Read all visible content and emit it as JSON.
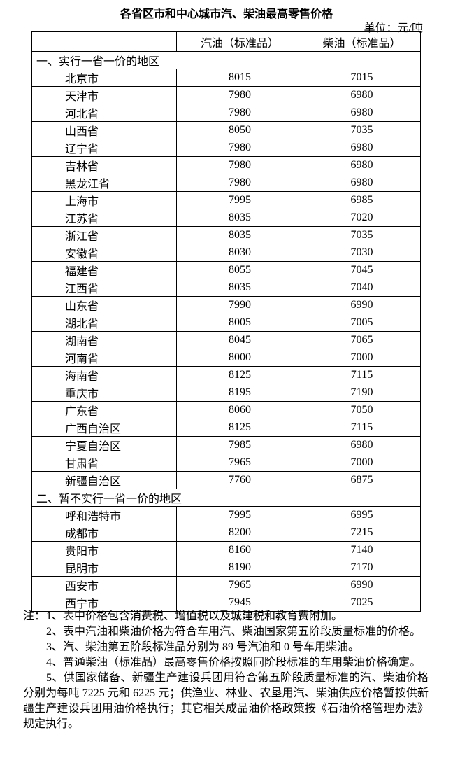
{
  "page": {
    "title": "各省区市和中心城市汽、柴油最高零售价格",
    "unit_label": "单位：元/吨"
  },
  "table": {
    "columns": [
      "",
      "汽油（标准品）",
      "柴油（标准品）"
    ],
    "sections": [
      {
        "header": "一、实行一省一价的地区",
        "rows": [
          {
            "region": "北京市",
            "gasoline": "8015",
            "diesel": "7015"
          },
          {
            "region": "天津市",
            "gasoline": "7980",
            "diesel": "6980"
          },
          {
            "region": "河北省",
            "gasoline": "7980",
            "diesel": "6980"
          },
          {
            "region": "山西省",
            "gasoline": "8050",
            "diesel": "7035"
          },
          {
            "region": "辽宁省",
            "gasoline": "7980",
            "diesel": "6980"
          },
          {
            "region": "吉林省",
            "gasoline": "7980",
            "diesel": "6980"
          },
          {
            "region": "黑龙江省",
            "gasoline": "7980",
            "diesel": "6980"
          },
          {
            "region": "上海市",
            "gasoline": "7995",
            "diesel": "6985"
          },
          {
            "region": "江苏省",
            "gasoline": "8035",
            "diesel": "7020"
          },
          {
            "region": "浙江省",
            "gasoline": "8035",
            "diesel": "7035"
          },
          {
            "region": "安徽省",
            "gasoline": "8030",
            "diesel": "7030"
          },
          {
            "region": "福建省",
            "gasoline": "8055",
            "diesel": "7045"
          },
          {
            "region": "江西省",
            "gasoline": "8035",
            "diesel": "7040"
          },
          {
            "region": "山东省",
            "gasoline": "7990",
            "diesel": "6990"
          },
          {
            "region": "湖北省",
            "gasoline": "8005",
            "diesel": "7005"
          },
          {
            "region": "湖南省",
            "gasoline": "8045",
            "diesel": "7065"
          },
          {
            "region": "河南省",
            "gasoline": "8000",
            "diesel": "7000"
          },
          {
            "region": "海南省",
            "gasoline": "8125",
            "diesel": "7115"
          },
          {
            "region": "重庆市",
            "gasoline": "8195",
            "diesel": "7190"
          },
          {
            "region": "广东省",
            "gasoline": "8060",
            "diesel": "7050"
          },
          {
            "region": "广西自治区",
            "gasoline": "8125",
            "diesel": "7115"
          },
          {
            "region": "宁夏自治区",
            "gasoline": "7985",
            "diesel": "6980"
          },
          {
            "region": "甘肃省",
            "gasoline": "7965",
            "diesel": "7000"
          },
          {
            "region": "新疆自治区",
            "gasoline": "7760",
            "diesel": "6875"
          }
        ]
      },
      {
        "header": "二、暂不实行一省一价的地区",
        "rows": [
          {
            "region": "呼和浩特市",
            "gasoline": "7995",
            "diesel": "6995"
          },
          {
            "region": "成都市",
            "gasoline": "8200",
            "diesel": "7215"
          },
          {
            "region": "贵阳市",
            "gasoline": "8160",
            "diesel": "7140"
          },
          {
            "region": "昆明市",
            "gasoline": "8190",
            "diesel": "7170"
          },
          {
            "region": "西安市",
            "gasoline": "7965",
            "diesel": "6990"
          },
          {
            "region": "西宁市",
            "gasoline": "7945",
            "diesel": "7025"
          }
        ]
      }
    ]
  },
  "notes": {
    "label": "注：",
    "items": [
      "1、表中价格包含消费税、增值税以及城建税和教育费附加。",
      "2、表中汽油和柴油价格为符合车用汽、柴油国家第五阶段质量标准的价格。",
      "3、汽、柴油第五阶段标准品分别为 89 号汽油和 0 号车用柴油。",
      "4、普通柴油（标准品）最高零售价格按照同阶段标准的车用柴油价格确定。",
      "5、供国家储备、新疆生产建设兵团用符合第五阶段质量标准的汽、柴油价格分别为每吨 7225 元和 6225 元；供渔业、林业、农垦用汽、柴油供应价格暂按供新疆生产建设兵团用油价格执行；其它相关成品油价格政策按《石油价格管理办法》规定执行。"
    ]
  }
}
